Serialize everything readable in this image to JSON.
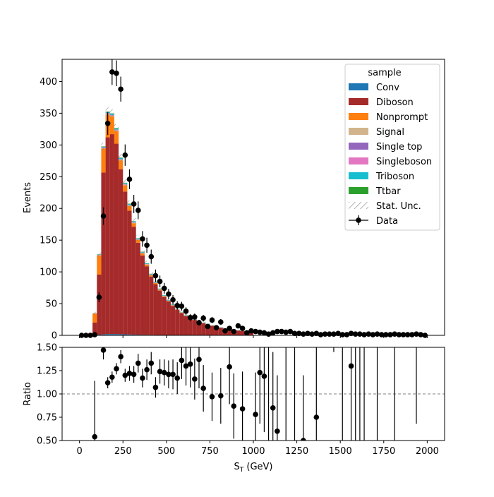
{
  "chart_data": {
    "type": "bar",
    "stacked": true,
    "bin_edges_start": 0,
    "bin_width": 25,
    "x": [
      12.5,
      37.5,
      62.5,
      87.5,
      112.5,
      137.5,
      162.5,
      187.5,
      212.5,
      237.5,
      262.5,
      287.5,
      312.5,
      337.5,
      362.5,
      387.5,
      412.5,
      437.5,
      462.5,
      487.5,
      512.5,
      537.5,
      562.5,
      587.5,
      612.5,
      637.5,
      662.5,
      687.5,
      712.5,
      737.5,
      762.5,
      787.5,
      812.5,
      837.5,
      862.5,
      887.5,
      912.5,
      937.5,
      962.5,
      987.5
    ],
    "xlabel": "S_T (GeV)",
    "xlim": [
      -100,
      2100
    ],
    "xticks": [
      0,
      250,
      500,
      750,
      1000,
      1250,
      1500,
      1750,
      2000
    ],
    "ylabel": "Events",
    "ylim": [
      0,
      435
    ],
    "yticks": [
      0,
      50,
      100,
      150,
      200,
      250,
      300,
      350,
      400
    ],
    "series": [
      {
        "name": "Conv",
        "color": "#1f77b4",
        "values": [
          0,
          0,
          0,
          0.3,
          1.0,
          1.5,
          2.0,
          2.0,
          2.0,
          1.8,
          1.6,
          1.4,
          1.2,
          1.0,
          0.9,
          0.8,
          0.7,
          0.6,
          0.5,
          0.5,
          0.4,
          0.4,
          0.3,
          0.3,
          0.3,
          0.2,
          0.2,
          0.2,
          0.2,
          0.2,
          0.1,
          0.1,
          0.1,
          0.1,
          0.1,
          0.1,
          0.1,
          0.1,
          0.1,
          0.1
        ]
      },
      {
        "name": "Diboson",
        "color": "#a52a2a",
        "values": [
          0,
          0,
          0.5,
          20,
          95,
          255,
          310,
          315,
          300,
          260,
          225,
          195,
          170,
          145,
          125,
          108,
          92,
          80,
          70,
          60,
          53,
          46,
          40,
          35,
          30,
          27,
          24,
          21,
          19,
          17,
          15,
          13,
          12,
          10.5,
          9.5,
          8.5,
          7.5,
          6.8,
          6.0,
          5.5
        ]
      },
      {
        "name": "Nonprompt",
        "color": "#ff7f0e",
        "values": [
          0,
          0,
          0.1,
          14,
          30,
          38,
          36,
          28,
          20,
          14,
          10,
          7.5,
          5.5,
          4.2,
          3.3,
          2.6,
          2.1,
          1.7,
          1.4,
          1.1,
          0.9,
          0.8,
          0.7,
          0.6,
          0.5,
          0.4,
          0.4,
          0.3,
          0.3,
          0.3,
          0.2,
          0.2,
          0.2,
          0.2,
          0.2,
          0.1,
          0.1,
          0.1,
          0.1,
          0.1
        ]
      },
      {
        "name": "Signal",
        "color": "#d2b48c",
        "values": [
          0,
          0,
          0,
          0.1,
          0.3,
          0.5,
          0.8,
          0.9,
          0.9,
          0.9,
          0.8,
          0.8,
          0.7,
          0.7,
          0.6,
          0.6,
          0.5,
          0.5,
          0.5,
          0.4,
          0.4,
          0.4,
          0.3,
          0.3,
          0.3,
          0.3,
          0.2,
          0.2,
          0.2,
          0.2,
          0.2,
          0.2,
          0.2,
          0.1,
          0.1,
          0.1,
          0.1,
          0.1,
          0.1,
          0.1
        ]
      },
      {
        "name": "Single top",
        "color": "#9467bd",
        "values": [
          0,
          0,
          0,
          0.1,
          0.2,
          0.4,
          0.5,
          0.5,
          0.5,
          0.4,
          0.4,
          0.3,
          0.3,
          0.3,
          0.2,
          0.2,
          0.2,
          0.2,
          0.1,
          0.1,
          0.1,
          0.1,
          0.1,
          0.1,
          0.1,
          0.1,
          0.1,
          0.1,
          0.1,
          0.1,
          0,
          0,
          0,
          0,
          0,
          0,
          0,
          0,
          0,
          0
        ]
      },
      {
        "name": "Singleboson",
        "color": "#e377c2",
        "values": [
          0,
          0,
          0,
          0.2,
          0.5,
          0.8,
          0.9,
          0.8,
          0.7,
          0.6,
          0.5,
          0.4,
          0.4,
          0.3,
          0.3,
          0.2,
          0.2,
          0.2,
          0.2,
          0.1,
          0.1,
          0.1,
          0.1,
          0.1,
          0.1,
          0.1,
          0.1,
          0.1,
          0.1,
          0.1,
          0,
          0,
          0,
          0,
          0,
          0,
          0,
          0,
          0,
          0
        ]
      },
      {
        "name": "Triboson",
        "color": "#17becf",
        "values": [
          0,
          0,
          0,
          0.1,
          0.5,
          1.0,
          1.5,
          1.8,
          1.8,
          1.7,
          1.6,
          1.5,
          1.4,
          1.3,
          1.2,
          1.1,
          1.0,
          0.9,
          0.8,
          0.8,
          0.7,
          0.6,
          0.6,
          0.5,
          0.5,
          0.4,
          0.4,
          0.4,
          0.3,
          0.3,
          0.3,
          0.3,
          0.2,
          0.2,
          0.2,
          0.2,
          0.2,
          0.2,
          0.1,
          0.1
        ]
      },
      {
        "name": "Ttbar",
        "color": "#2ca02c",
        "values": [
          0,
          0,
          0,
          0.1,
          0.3,
          0.6,
          0.8,
          0.8,
          0.8,
          0.7,
          0.6,
          0.6,
          0.5,
          0.4,
          0.4,
          0.3,
          0.3,
          0.3,
          0.2,
          0.2,
          0.2,
          0.2,
          0.1,
          0.1,
          0.1,
          0.1,
          0.1,
          0.1,
          0.1,
          0.1,
          0,
          0,
          0,
          0,
          0,
          0,
          0,
          0,
          0,
          0
        ]
      }
    ],
    "uncertainty_label": "Stat. Unc.",
    "data": {
      "name": "Data",
      "x": [
        12.5,
        37.5,
        62.5,
        87.5,
        112.5,
        137.5,
        162.5,
        187.5,
        212.5,
        237.5,
        262.5,
        287.5,
        312.5,
        337.5,
        362.5,
        387.5,
        412.5,
        437.5,
        462.5,
        487.5,
        512.5,
        537.5,
        562.5,
        587.5,
        612.5,
        637.5,
        662.5,
        687.5,
        712.5,
        737.5,
        762.5,
        787.5,
        812.5,
        837.5,
        862.5,
        887.5,
        912.5,
        937.5,
        962.5,
        987.5,
        1012.5,
        1037.5,
        1062.5,
        1087.5,
        1112.5,
        1137.5,
        1162.5,
        1187.5,
        1212.5,
        1237.5,
        1262.5,
        1287.5,
        1312.5,
        1337.5,
        1362.5,
        1387.5,
        1412.5,
        1437.5,
        1462.5,
        1487.5,
        1512.5,
        1537.5,
        1562.5,
        1587.5,
        1612.5,
        1637.5,
        1662.5,
        1687.5,
        1712.5,
        1737.5,
        1762.5,
        1787.5,
        1812.5,
        1837.5,
        1862.5,
        1887.5,
        1912.5,
        1937.5,
        1962.5,
        1987.5
      ],
      "y": [
        0,
        0,
        0,
        1,
        60,
        188,
        334,
        415,
        413,
        388,
        284,
        246,
        207,
        197,
        152,
        142,
        124,
        94,
        85,
        74,
        65,
        56,
        47,
        46,
        38,
        28,
        29,
        20,
        27,
        14,
        24,
        12,
        21,
        7,
        11,
        6,
        15,
        11,
        4,
        7,
        6,
        5,
        4,
        2,
        4,
        6,
        6,
        5,
        6,
        3,
        3,
        2,
        3,
        2,
        3,
        1,
        2,
        2,
        2,
        3,
        1,
        1,
        3,
        2,
        2,
        1,
        2,
        1,
        2,
        1,
        1,
        1,
        2,
        1,
        1,
        1,
        1,
        2,
        1,
        0
      ]
    },
    "ratio": {
      "ylabel": "Ratio",
      "ylim": [
        0.5,
        1.5
      ],
      "yticks": [
        0.5,
        0.75,
        1.0,
        1.25,
        1.5
      ],
      "reference": 1.0,
      "points": [
        {
          "x": 87.5,
          "y": 0.54,
          "err": 0.6
        },
        {
          "x": 137.5,
          "y": 1.47,
          "err": 0.1
        },
        {
          "x": 162.5,
          "y": 1.12,
          "err": 0.06
        },
        {
          "x": 187.5,
          "y": 1.18,
          "err": 0.06
        },
        {
          "x": 212.5,
          "y": 1.27,
          "err": 0.06
        },
        {
          "x": 237.5,
          "y": 1.4,
          "err": 0.07
        },
        {
          "x": 262.5,
          "y": 1.2,
          "err": 0.07
        },
        {
          "x": 287.5,
          "y": 1.22,
          "err": 0.08
        },
        {
          "x": 312.5,
          "y": 1.21,
          "err": 0.09
        },
        {
          "x": 337.5,
          "y": 1.33,
          "err": 0.1
        },
        {
          "x": 362.5,
          "y": 1.17,
          "err": 0.1
        },
        {
          "x": 387.5,
          "y": 1.26,
          "err": 0.11
        },
        {
          "x": 412.5,
          "y": 1.33,
          "err": 0.12
        },
        {
          "x": 437.5,
          "y": 1.07,
          "err": 0.11
        },
        {
          "x": 462.5,
          "y": 1.24,
          "err": 0.13
        },
        {
          "x": 487.5,
          "y": 1.23,
          "err": 0.14
        },
        {
          "x": 512.5,
          "y": 1.21,
          "err": 0.15
        },
        {
          "x": 537.5,
          "y": 1.21,
          "err": 0.16
        },
        {
          "x": 562.5,
          "y": 1.17,
          "err": 0.17
        },
        {
          "x": 587.5,
          "y": 1.36,
          "err": 0.2
        },
        {
          "x": 612.5,
          "y": 1.3,
          "err": 0.21
        },
        {
          "x": 637.5,
          "y": 1.32,
          "err": 0.25
        },
        {
          "x": 662.5,
          "y": 1.16,
          "err": 0.22
        },
        {
          "x": 687.5,
          "y": 1.37,
          "err": 0.31
        },
        {
          "x": 712.5,
          "y": 1.06,
          "err": 0.25
        },
        {
          "x": 762.5,
          "y": 0.97,
          "err": 0.26
        },
        {
          "x": 812.5,
          "y": 0.98,
          "err": 0.3
        },
        {
          "x": 862.5,
          "y": 1.29,
          "err": 0.4
        },
        {
          "x": 887.5,
          "y": 0.87,
          "err": 0.35
        },
        {
          "x": 937.5,
          "y": 0.84,
          "err": 0.4
        },
        {
          "x": 1012.5,
          "y": 0.78,
          "err": 0.45
        },
        {
          "x": 1037.5,
          "y": 1.23,
          "err": 0.55
        },
        {
          "x": 1062.5,
          "y": 1.19,
          "err": 0.6
        },
        {
          "x": 1112.5,
          "y": 0.85,
          "err": 0.6
        },
        {
          "x": 1137.5,
          "y": 0.6,
          "err": 0.6
        },
        {
          "x": 1287.5,
          "y": 0.5,
          "err": 0.7
        },
        {
          "x": 1362.5,
          "y": 0.75,
          "err": 0.75
        },
        {
          "x": 1562.5,
          "y": 1.3,
          "err": 0.9
        }
      ],
      "error_only": [
        {
          "x": 1087.5,
          "lo": 0.5,
          "hi": 1.5
        },
        {
          "x": 1187.5,
          "lo": 0.5,
          "hi": 1.5
        },
        {
          "x": 1237.5,
          "lo": 0.5,
          "hi": 1.5
        },
        {
          "x": 1462.5,
          "lo": 1.45,
          "hi": 1.5
        },
        {
          "x": 1512.5,
          "lo": 0.5,
          "hi": 1.5
        },
        {
          "x": 1587.5,
          "lo": 0.5,
          "hi": 1.5
        },
        {
          "x": 1612.5,
          "lo": 0.5,
          "hi": 1.5
        },
        {
          "x": 1637.5,
          "lo": 0.5,
          "hi": 1.5
        },
        {
          "x": 1712.5,
          "lo": 0.5,
          "hi": 1.5
        },
        {
          "x": 1812.5,
          "lo": 0.5,
          "hi": 1.5
        },
        {
          "x": 1937.5,
          "lo": 0.68,
          "hi": 1.5
        }
      ]
    },
    "legend": {
      "title": "sample",
      "placement": "top-right"
    }
  }
}
